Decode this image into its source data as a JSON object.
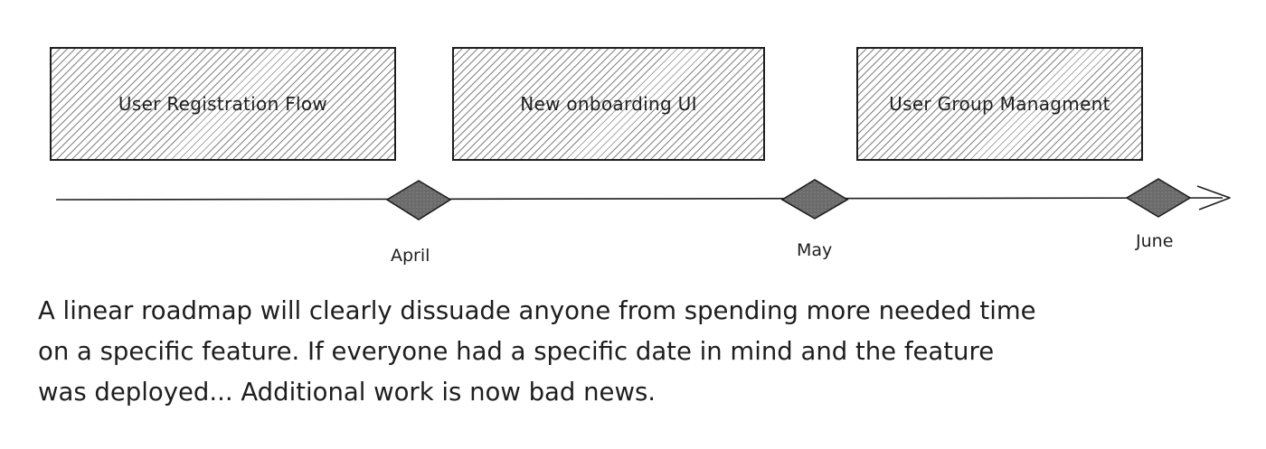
{
  "features": [
    {
      "label": "User Registration Flow"
    },
    {
      "label": "New onboarding UI"
    },
    {
      "label": "User Group Managment"
    }
  ],
  "milestones": [
    {
      "label": "April"
    },
    {
      "label": "May"
    },
    {
      "label": "June"
    }
  ],
  "note": {
    "lines": [
      "A linear roadmap will clearly dissuade anyone from spending more needed time",
      "on a specific feature. If everyone had a specific date in mind and the feature",
      "was deployed... Additional work is now bad news."
    ]
  },
  "colors": {
    "stroke": "#1e1e1e",
    "milestone_fill": "#6b6b6b",
    "background": "#ffffff"
  }
}
